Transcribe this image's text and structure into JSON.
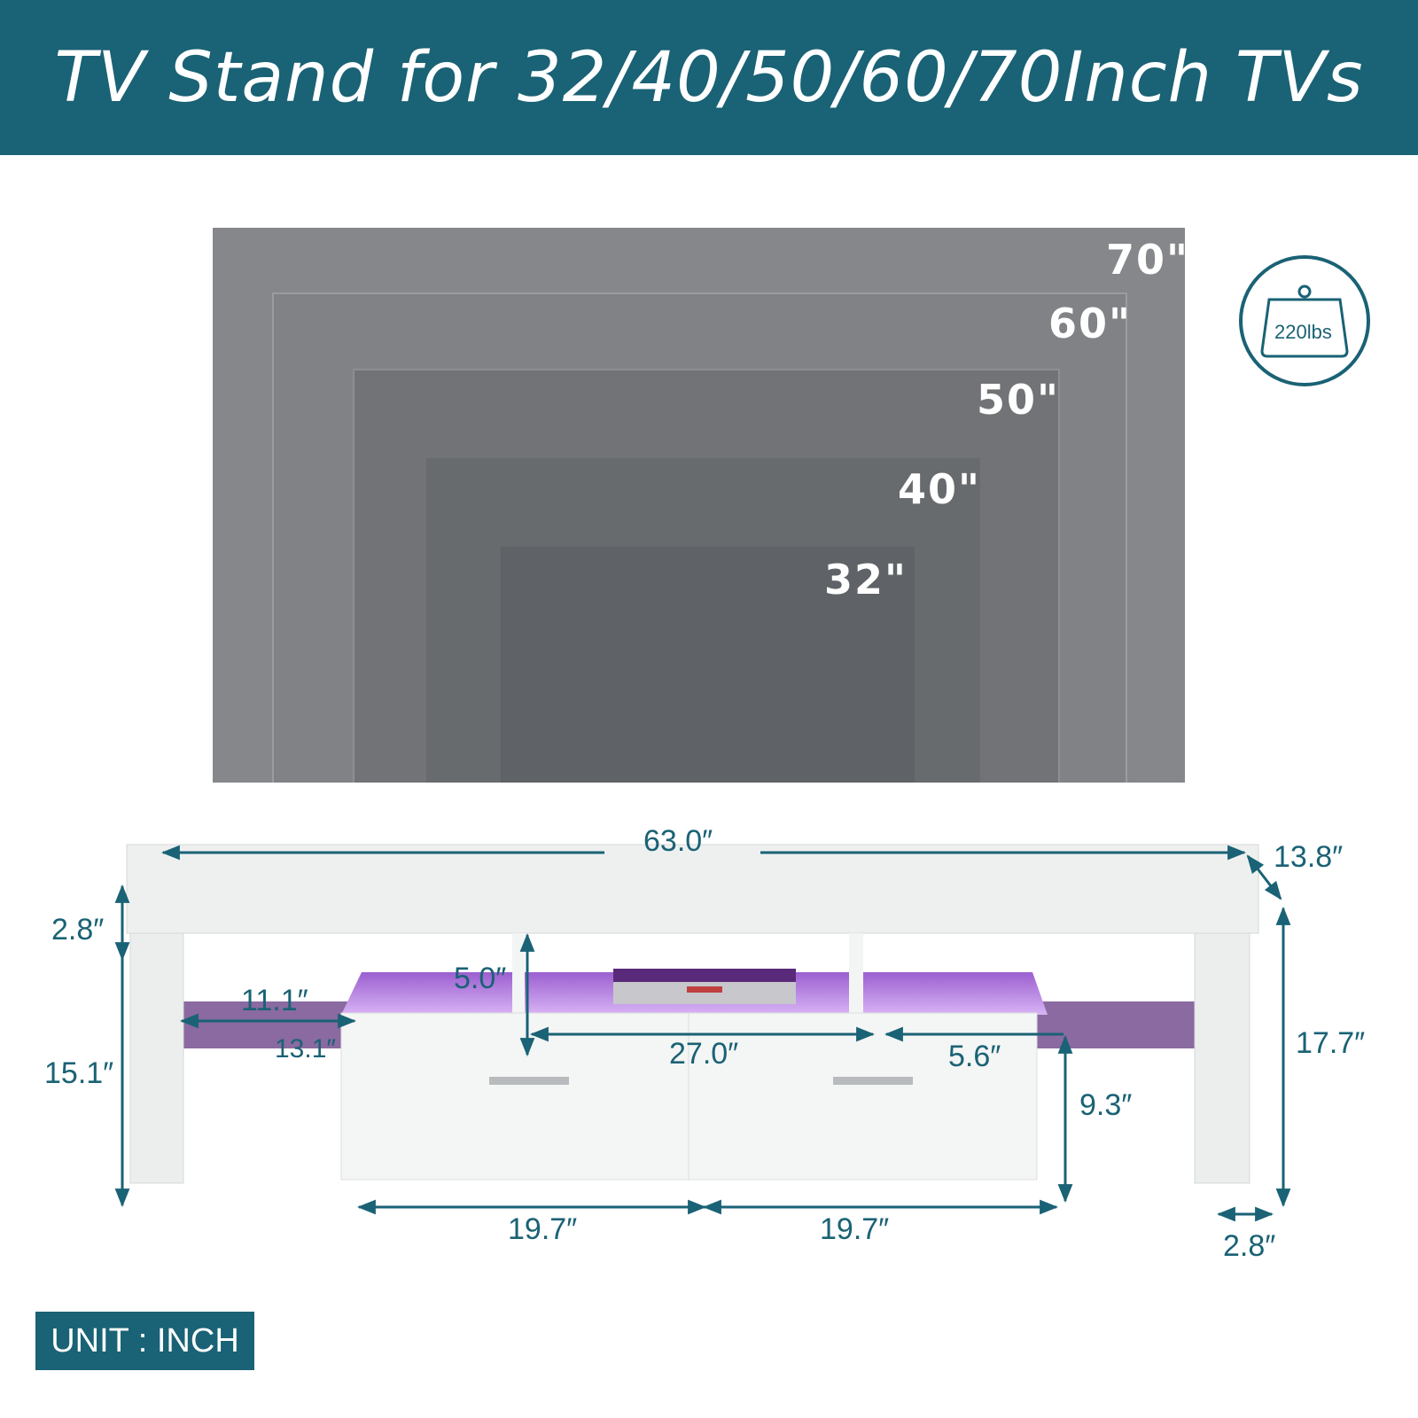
{
  "header": {
    "title": "TV Stand for 32/40/50/60/70Inch TVs"
  },
  "tv_sizes": [
    "70\"",
    "60\"",
    "50\"",
    "40\"",
    "32\""
  ],
  "load_capacity": {
    "label": "220lbs",
    "icon": "weight-icon"
  },
  "dimensions": {
    "overall_length": "63.0″",
    "depth": "13.8″",
    "top_thickness": "2.8″",
    "overall_height": "17.7″",
    "leg_height": "15.1″",
    "shelf_length": "11.1″",
    "shelf_depth": "13.1″",
    "open_height": "5.0″",
    "center_opening": "27.0″",
    "side_opening": "5.6″",
    "drawer_height": "9.3″",
    "drawer_width_left": "19.7″",
    "drawer_width_right": "19.7″",
    "leg_width": "2.8″"
  },
  "unit_label": "UNIT : INCH",
  "colors": {
    "brand": "#1a6275",
    "led": "#b57fe0"
  }
}
